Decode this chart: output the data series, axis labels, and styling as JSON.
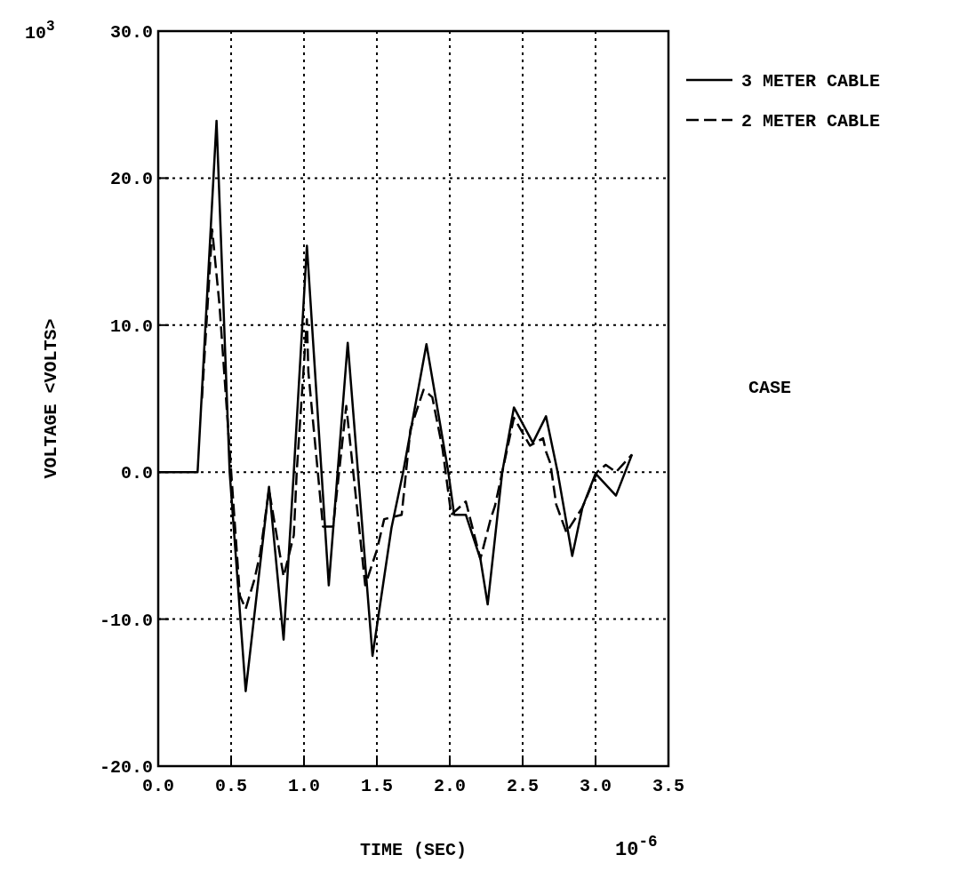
{
  "chart_data": {
    "type": "line",
    "xlabel": "TIME  (SEC)",
    "ylabel": "VOLTAGE  <VOLTS>",
    "annotations": [
      "10$^{3}$",
      "10$^{-6}$",
      "CASE"
    ],
    "xlim": [
      0,
      3.5
    ],
    "xticks": [
      {
        "value": 0,
        "label": "0.0"
      },
      {
        "value": 0.5,
        "label": "0.5"
      },
      {
        "value": 1,
        "label": "1.0"
      },
      {
        "value": 1.5,
        "label": "1.5"
      },
      {
        "value": 2,
        "label": "2.0"
      },
      {
        "value": 2.5,
        "label": "2.5"
      },
      {
        "value": 3,
        "label": "3.0"
      },
      {
        "value": 3.5,
        "label": "3.5"
      }
    ],
    "ylim": [
      -20,
      30
    ],
    "yticks": [
      {
        "value": -20,
        "label": "-20.0"
      },
      {
        "value": -10,
        "label": "-10.0"
      },
      {
        "value": 0,
        "label": "0.0"
      },
      {
        "value": 10,
        "label": "10.0"
      },
      {
        "value": 20,
        "label": "20.0"
      },
      {
        "value": 30,
        "label": "30.0"
      }
    ],
    "grid": true,
    "legend": "top right",
    "series": [
      {
        "name": "3 METER CABLE",
        "color": "#000000",
        "line_style": "solid",
        "x": [
          0,
          0.27,
          0.4,
          0.49,
          0.6,
          0.76,
          0.86,
          0.93,
          1.02,
          1.17,
          1.3,
          1.47,
          1.6,
          1.68,
          1.84,
          1.99,
          2.03,
          2.11,
          2.21,
          2.26,
          2.36,
          2.44,
          2.57,
          2.66,
          2.74,
          2.84,
          2.91,
          3.0,
          3.14,
          3.25
        ],
        "values": [
          0,
          0,
          23.9,
          0,
          -14.9,
          -1.0,
          -11.4,
          0,
          15.4,
          -7.7,
          8.8,
          -12.5,
          -3.8,
          0,
          8.7,
          0,
          -2.9,
          -2.9,
          -5.9,
          -9.0,
          0,
          4.4,
          2.0,
          3.8,
          0,
          -5.7,
          -2.4,
          -0.1,
          -1.6,
          1.2
        ]
      },
      {
        "name": "2 METER CABLE",
        "color": "#000000",
        "line_style": "dashed",
        "x": [
          0.3,
          0.37,
          0.42,
          0.56,
          0.6,
          0.66,
          0.7,
          0.76,
          0.86,
          0.93,
          0.95,
          1.02,
          1.03,
          1.13,
          1.2,
          1.29,
          1.42,
          1.5,
          1.55,
          1.67,
          1.73,
          1.82,
          1.88,
          1.9,
          1.95,
          2.01,
          2.11,
          2.21,
          2.28,
          2.31,
          2.36,
          2.44,
          2.55,
          2.64,
          2.66,
          2.69,
          2.73,
          2.8,
          2.91,
          3.01,
          3.07,
          3.14,
          3.25
        ],
        "values": [
          5,
          16.5,
          11.4,
          -8.4,
          -9.3,
          -7.3,
          -5.5,
          -1.2,
          -7.1,
          -4.3,
          0,
          10.4,
          6.8,
          -3.7,
          -3.7,
          4.5,
          -7.7,
          -5.3,
          -3.2,
          -2.9,
          2.9,
          5.6,
          5.1,
          4.1,
          1.6,
          -2.9,
          -2.0,
          -5.9,
          -3.2,
          -2.3,
          0,
          3.7,
          1.8,
          2.3,
          1.4,
          0.6,
          -2.2,
          -4.1,
          -2.4,
          0,
          0.5,
          0.0,
          1.2
        ]
      }
    ]
  }
}
